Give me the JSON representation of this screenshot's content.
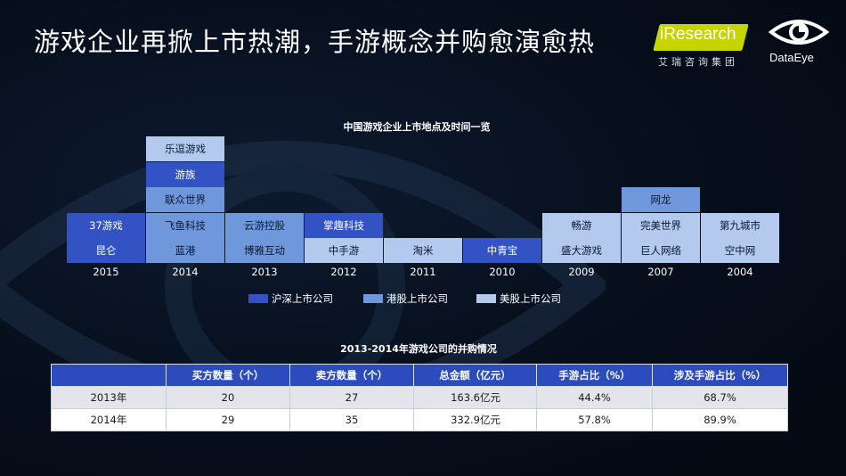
{
  "title": "游戏企业再掀上市热潮，手游概念并购愈演愈热",
  "logos": {
    "iresearch_name": "iResearch",
    "iresearch_sub": "艾瑞咨询集团",
    "dataeye_name": "DataEye"
  },
  "chart_data": {
    "type": "table",
    "title": "中国游戏企业上市地点及时间一览",
    "colors": {
      "沪深上市公司": "#3352c3",
      "港股上市公司": "#6f97dc",
      "美股上市公司": "#b3c9ee"
    },
    "years": [
      {
        "year": "2015",
        "companies": [
          {
            "name": "昆仑",
            "market": "沪深上市公司"
          },
          {
            "name": "37游戏",
            "market": "沪深上市公司"
          }
        ]
      },
      {
        "year": "2014",
        "companies": [
          {
            "name": "蓝港",
            "market": "港股上市公司"
          },
          {
            "name": "飞鱼科技",
            "market": "港股上市公司"
          },
          {
            "name": "联众世界",
            "market": "港股上市公司"
          },
          {
            "name": "游族",
            "market": "沪深上市公司"
          },
          {
            "name": "乐逗游戏",
            "market": "美股上市公司"
          }
        ]
      },
      {
        "year": "2013",
        "companies": [
          {
            "name": "博雅互动",
            "market": "港股上市公司"
          },
          {
            "name": "云游控股",
            "market": "港股上市公司"
          }
        ]
      },
      {
        "year": "2012",
        "companies": [
          {
            "name": "中手游",
            "market": "美股上市公司"
          },
          {
            "name": "掌趣科技",
            "market": "沪深上市公司"
          }
        ]
      },
      {
        "year": "2011",
        "companies": [
          {
            "name": "淘米",
            "market": "美股上市公司"
          }
        ]
      },
      {
        "year": "2010",
        "companies": [
          {
            "name": "中青宝",
            "market": "沪深上市公司"
          }
        ]
      },
      {
        "year": "2009",
        "companies": [
          {
            "name": "盛大游戏",
            "market": "美股上市公司"
          },
          {
            "name": "畅游",
            "market": "美股上市公司"
          }
        ]
      },
      {
        "year": "2007",
        "companies": [
          {
            "name": "巨人网络",
            "market": "美股上市公司"
          },
          {
            "name": "完美世界",
            "market": "美股上市公司"
          },
          {
            "name": "网龙",
            "market": "港股上市公司"
          }
        ]
      },
      {
        "year": "2004",
        "companies": [
          {
            "name": "空中网",
            "market": "美股上市公司"
          },
          {
            "name": "第九城市",
            "market": "美股上市公司"
          }
        ]
      }
    ],
    "legend": [
      {
        "key": "hs",
        "label": "沪深上市公司"
      },
      {
        "key": "hk",
        "label": "港股上市公司"
      },
      {
        "key": "us",
        "label": "美股上市公司"
      }
    ]
  },
  "ma_table": {
    "title": "2013-2014年游戏公司的并购情况",
    "headers": [
      "",
      "买方数量（个）",
      "卖方数量（个）",
      "总金额（亿元）",
      "手游占比（%）",
      "涉及手游占比（%）"
    ],
    "rows": [
      [
        "2013年",
        "20",
        "27",
        "163.6亿元",
        "44.4%",
        "68.7%"
      ],
      [
        "2014年",
        "29",
        "35",
        "332.9亿元",
        "57.8%",
        "89.9%"
      ]
    ]
  }
}
